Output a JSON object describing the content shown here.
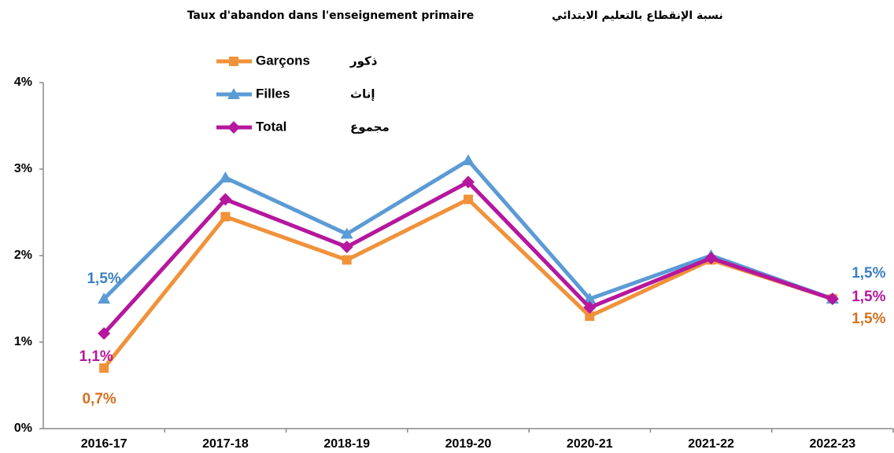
{
  "chart_data": {
    "type": "line",
    "title": "Taux d'abandon dans l'enseignement primaire",
    "title_ar": "نسبة الإنقطاع بالتعليم الابتدائي",
    "categories": [
      "2016-17",
      "2017-18",
      "2018-19",
      "2019-20",
      "2020-21",
      "2021-22",
      "2022-23"
    ],
    "ylim": [
      0,
      4
    ],
    "yticks": [
      {
        "value": 0,
        "label": "0%"
      },
      {
        "value": 1,
        "label": "1%"
      },
      {
        "value": 2,
        "label": "2%"
      },
      {
        "value": 3,
        "label": "3%"
      },
      {
        "value": 4,
        "label": "4%"
      }
    ],
    "series": [
      {
        "name": "Garçons",
        "name_ar": "ذكور",
        "color": "#f0923a",
        "label_color": "#d4701e",
        "marker": "square",
        "values": [
          0.7,
          2.45,
          1.95,
          2.65,
          1.3,
          1.95,
          1.5
        ],
        "value_labels": [
          "0,7%",
          null,
          null,
          null,
          null,
          null,
          "1,5%"
        ]
      },
      {
        "name": "Filles",
        "name_ar": "إناث",
        "color": "#5b9bd5",
        "label_color": "#3b7fc2",
        "marker": "triangle",
        "values": [
          1.5,
          2.9,
          2.25,
          3.1,
          1.5,
          2.0,
          1.5
        ],
        "value_labels": [
          "1,5%",
          null,
          null,
          null,
          null,
          null,
          "1,5%"
        ]
      },
      {
        "name": "Total",
        "name_ar": "مجموع",
        "color": "#b5179e",
        "label_color": "#b5179e",
        "marker": "diamond",
        "values": [
          1.1,
          2.65,
          2.1,
          2.85,
          1.4,
          1.97,
          1.5
        ],
        "value_labels": [
          "1,1%",
          null,
          null,
          null,
          null,
          null,
          "1,5%"
        ]
      }
    ]
  }
}
